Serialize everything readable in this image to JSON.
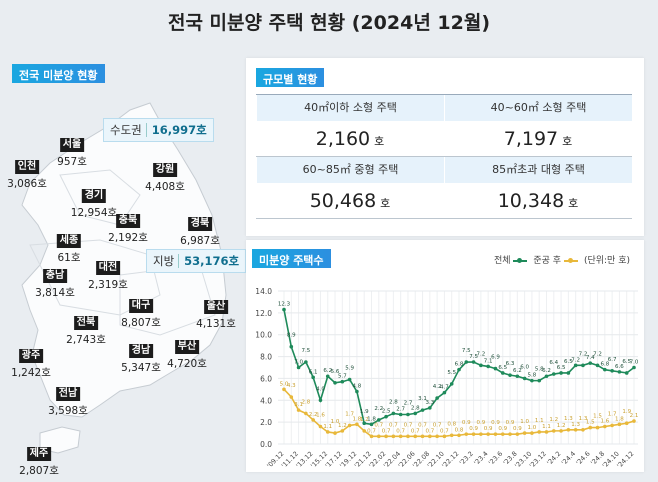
{
  "title": "전국 미분양 주택 현황 (2024년 12월)",
  "map": {
    "tag": "전국 미분양 현황",
    "capital": {
      "label": "수도권",
      "value": "16,997호"
    },
    "local": {
      "label": "지방",
      "value": "53,176호"
    },
    "regions": [
      {
        "name": "서울",
        "value": "957호"
      },
      {
        "name": "인천",
        "value": "3,086호"
      },
      {
        "name": "경기",
        "value": "12,954호"
      },
      {
        "name": "강원",
        "value": "4,408호"
      },
      {
        "name": "충북",
        "value": "2,192호"
      },
      {
        "name": "경북",
        "value": "6,987호"
      },
      {
        "name": "세종",
        "value": "61호"
      },
      {
        "name": "충남",
        "value": "3,814호"
      },
      {
        "name": "대전",
        "value": "2,319호"
      },
      {
        "name": "대구",
        "value": "8,807호"
      },
      {
        "name": "울산",
        "value": "4,131호"
      },
      {
        "name": "전북",
        "value": "2,743호"
      },
      {
        "name": "경남",
        "value": "5,347호"
      },
      {
        "name": "부산",
        "value": "4,720호"
      },
      {
        "name": "광주",
        "value": "1,242호"
      },
      {
        "name": "전남",
        "value": "3,598호"
      },
      {
        "name": "제주",
        "value": "2,807호"
      }
    ]
  },
  "size": {
    "tag": "규모별 현황",
    "unit": "호",
    "items": [
      {
        "label": "40㎡이하 소형 주택",
        "value": "2,160"
      },
      {
        "label": "40~60㎡ 소형 주택",
        "value": "7,197"
      },
      {
        "label": "60~85㎡ 중형 주택",
        "value": "50,468"
      },
      {
        "label": "85㎡초과 대형 주택",
        "value": "10,348"
      }
    ]
  },
  "chart_data": {
    "type": "line",
    "title": "미분양 주택수",
    "unit": "(단위:만 호)",
    "ylim": [
      0,
      14
    ],
    "yticks": [
      "0.0",
      "2.0",
      "4.0",
      "6.0",
      "8.0",
      "10.0",
      "12.0",
      "14.0"
    ],
    "grid": true,
    "legend": "top-right",
    "xtick_labels": [
      "'09.12",
      "'11.12",
      "'13.12",
      "'15.12",
      "'17.12",
      "'19.12",
      "'21.12",
      "'22.02",
      "'22.04",
      "'22.06",
      "'22.08",
      "'22.10",
      "'22.12",
      "'23.2",
      "'23.4",
      "'23.6",
      "'23.8",
      "'23.10",
      "'23.12",
      "'24.2",
      "'24.4",
      "'24.6",
      "'24.8",
      "'24.10",
      "'24.12"
    ],
    "series": [
      {
        "name": "전체",
        "color": "#1e8a5a",
        "values": [
          12.3,
          8.9,
          7.0,
          7.5,
          6.1,
          4.0,
          6.2,
          5.6,
          5.7,
          5.9,
          4.8,
          1.9,
          1.8,
          2.2,
          2.5,
          2.8,
          2.7,
          2.7,
          2.8,
          3.1,
          3.3,
          4.2,
          4.7,
          5.5,
          6.8,
          7.5,
          7.5,
          7.2,
          7.1,
          6.9,
          6.5,
          6.3,
          6.2,
          6.0,
          5.8,
          5.8,
          6.2,
          6.4,
          6.5,
          6.5,
          7.2,
          7.2,
          7.4,
          7.2,
          6.8,
          6.7,
          6.6,
          6.5,
          7.0
        ]
      },
      {
        "name": "준공 후",
        "color": "#e8b83a",
        "values": [
          5.0,
          4.3,
          3.1,
          2.8,
          2.2,
          1.6,
          1.1,
          1.0,
          1.2,
          1.7,
          1.8,
          1.2,
          0.7,
          0.7,
          0.7,
          0.7,
          0.7,
          0.7,
          0.7,
          0.7,
          0.7,
          0.7,
          0.7,
          0.8,
          0.8,
          0.9,
          0.9,
          0.9,
          0.9,
          0.9,
          0.9,
          0.9,
          0.9,
          1.0,
          1.0,
          1.1,
          1.1,
          1.2,
          1.2,
          1.3,
          1.3,
          1.3,
          1.5,
          1.5,
          1.6,
          1.7,
          1.8,
          1.9,
          2.1
        ]
      }
    ]
  }
}
